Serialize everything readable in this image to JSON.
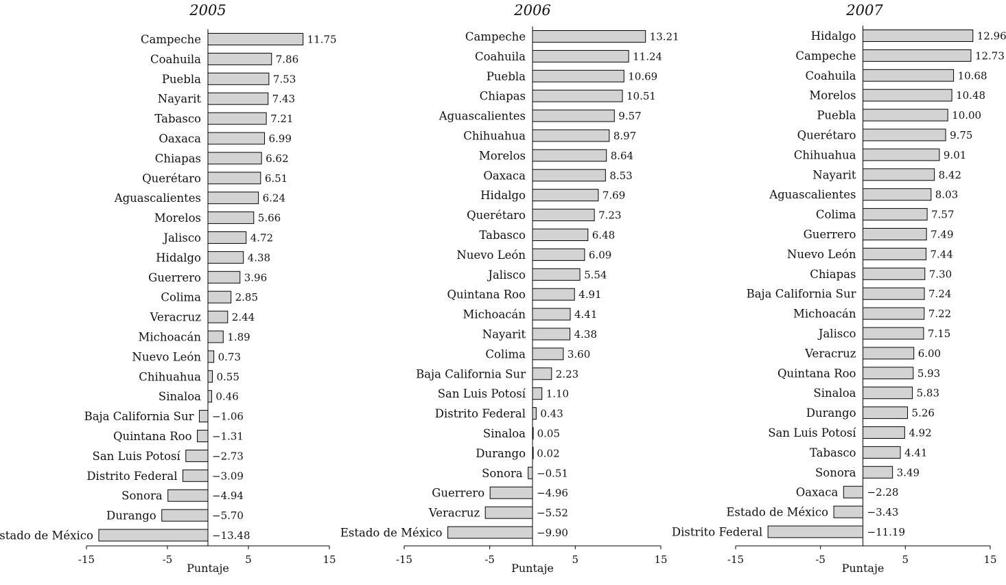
{
  "colors": {
    "bar_fill": "#d3d3d3",
    "bar_stroke": "#000000",
    "axis": "#000000",
    "text": "#111111"
  },
  "chart_data": [
    {
      "type": "bar",
      "orientation": "horizontal",
      "title": "2005",
      "xlabel": "Puntaje",
      "xlim": [
        -15,
        15
      ],
      "xticks": [
        -15,
        -5,
        5,
        15
      ],
      "xtick_labels": [
        "-15",
        "-5",
        "5",
        "15"
      ],
      "grid": false,
      "categories": [
        "Campeche",
        "Coahuila",
        "Puebla",
        "Nayarit",
        "Tabasco",
        "Oaxaca",
        "Chiapas",
        "Querétaro",
        "Aguascalientes",
        "Morelos",
        "Jalisco",
        "Hidalgo",
        "Guerrero",
        "Colima",
        "Veracruz",
        "Michoacán",
        "Nuevo León",
        "Chihuahua",
        "Sinaloa",
        "Baja California Sur",
        "Quintana Roo",
        "San Luis Potosí",
        "Distrito Federal",
        "Sonora",
        "Durango",
        "Estado de México"
      ],
      "values": [
        11.75,
        7.86,
        7.53,
        7.43,
        7.21,
        6.99,
        6.62,
        6.51,
        6.24,
        5.66,
        4.72,
        4.38,
        3.96,
        2.85,
        2.44,
        1.89,
        0.73,
        0.55,
        0.46,
        -1.06,
        -1.31,
        -2.73,
        -3.09,
        -4.94,
        -5.7,
        -13.48
      ],
      "value_labels": [
        "11.75",
        "7.86",
        "7.53",
        "7.43",
        "7.21",
        "6.99",
        "6.62",
        "6.51",
        "6.24",
        "5.66",
        "4.72",
        "4.38",
        "3.96",
        "2.85",
        "2.44",
        "1.89",
        "0.73",
        "0.55",
        "0.46",
        "−1.06",
        "−1.31",
        "−2.73",
        "−3.09",
        "−4.94",
        "−5.70",
        "−13.48"
      ]
    },
    {
      "type": "bar",
      "orientation": "horizontal",
      "title": "2006",
      "xlabel": "Puntaje",
      "xlim": [
        -15,
        15
      ],
      "xticks": [
        -15,
        -5,
        5,
        15
      ],
      "xtick_labels": [
        "-15",
        "-5",
        "5",
        "15"
      ],
      "grid": false,
      "categories": [
        "Campeche",
        "Coahuila",
        "Puebla",
        "Chiapas",
        "Aguascalientes",
        "Chihuahua",
        "Morelos",
        "Oaxaca",
        "Hidalgo",
        "Querétaro",
        "Tabasco",
        "Nuevo León",
        "Jalisco",
        "Quintana Roo",
        "Michoacán",
        "Nayarit",
        "Colima",
        "Baja California Sur",
        "San Luis Potosí",
        "Distrito Federal",
        "Sinaloa",
        "Durango",
        "Sonora",
        "Guerrero",
        "Veracruz",
        "Estado de México"
      ],
      "values": [
        13.21,
        11.24,
        10.69,
        10.51,
        9.57,
        8.97,
        8.64,
        8.53,
        7.69,
        7.23,
        6.48,
        6.09,
        5.54,
        4.91,
        4.41,
        4.38,
        3.6,
        2.23,
        1.1,
        0.43,
        0.05,
        0.02,
        -0.51,
        -4.96,
        -5.52,
        -9.9
      ],
      "value_labels": [
        "13.21",
        "11.24",
        "10.69",
        "10.51",
        "9.57",
        "8.97",
        "8.64",
        "8.53",
        "7.69",
        "7.23",
        "6.48",
        "6.09",
        "5.54",
        "4.91",
        "4.41",
        "4.38",
        "3.60",
        "2.23",
        "1.10",
        "0.43",
        "0.05",
        "0.02",
        "−0.51",
        "−4.96",
        "−5.52",
        "−9.90"
      ]
    },
    {
      "type": "bar",
      "orientation": "horizontal",
      "title": "2007",
      "xlabel": "Puntaje",
      "xlim": [
        -15,
        15
      ],
      "xticks": [
        -15,
        -5,
        5,
        15
      ],
      "xtick_labels": [
        "-15",
        "-5",
        "5",
        "15"
      ],
      "grid": false,
      "categories": [
        "Hidalgo",
        "Campeche",
        "Coahuila",
        "Morelos",
        "Puebla",
        "Querétaro",
        "Chihuahua",
        "Nayarit",
        "Aguascalientes",
        "Colima",
        "Guerrero",
        "Nuevo León",
        "Chiapas",
        "Baja California Sur",
        "Michoacán",
        "Jalisco",
        "Veracruz",
        "Quintana Roo",
        "Sinaloa",
        "Durango",
        "San Luis Potosí",
        "Tabasco",
        "Sonora",
        "Oaxaca",
        "Estado de México",
        "Distrito Federal"
      ],
      "values": [
        12.96,
        12.73,
        10.68,
        10.48,
        10.0,
        9.75,
        9.01,
        8.42,
        8.03,
        7.57,
        7.49,
        7.44,
        7.3,
        7.24,
        7.22,
        7.15,
        6.0,
        5.93,
        5.83,
        5.26,
        4.92,
        4.41,
        3.49,
        -2.28,
        -3.43,
        -11.19
      ],
      "value_labels": [
        "12.96",
        "12.73",
        "10.68",
        "10.48",
        "10.00",
        "9.75",
        "9.01",
        "8.42",
        "8.03",
        "7.57",
        "7.49",
        "7.44",
        "7.30",
        "7.24",
        "7.22",
        "7.15",
        "6.00",
        "5.93",
        "5.83",
        "5.26",
        "4.92",
        "4.41",
        "3.49",
        "−2.28",
        "−3.43",
        "−11.19"
      ]
    }
  ]
}
